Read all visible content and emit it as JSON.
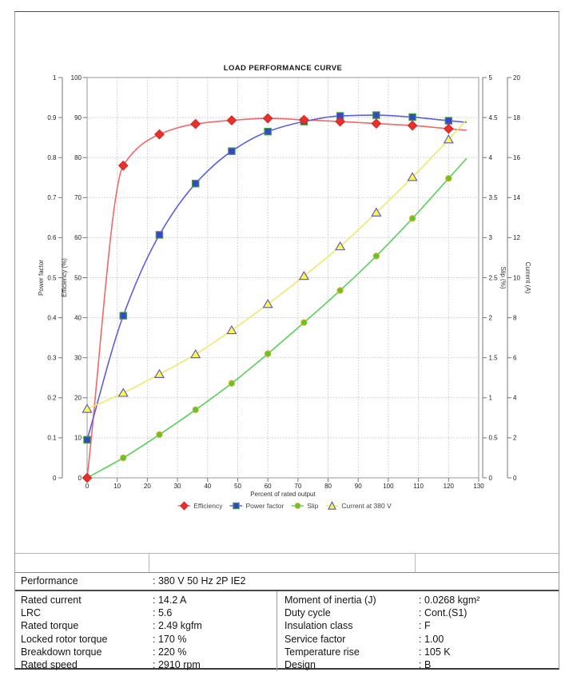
{
  "chart_data": {
    "type": "line",
    "title": "LOAD PERFORMANCE CURVE",
    "x_label": "Percent of rated output",
    "x_range": [
      0,
      130
    ],
    "x_tick_step": 10,
    "grid": "dotted",
    "legend_position": "bottom",
    "x_points": [
      0,
      12,
      24,
      36,
      48,
      60,
      72,
      84,
      96,
      108,
      120
    ],
    "line_end_x": 126,
    "axes": [
      {
        "id": "power_factor",
        "title": "Power factor",
        "side": "left",
        "min": 0,
        "max": 1,
        "tick_step": 0.1
      },
      {
        "id": "efficiency",
        "title": "Efficiency (%)",
        "side": "left",
        "min": 0,
        "max": 100,
        "tick_step": 10
      },
      {
        "id": "slip",
        "title": "Slip (%)",
        "side": "right",
        "min": 0,
        "max": 5,
        "tick_step": 0.5
      },
      {
        "id": "current",
        "title": "Current (A)",
        "side": "right",
        "min": 0,
        "max": 20,
        "tick_step": 2
      }
    ],
    "series": [
      {
        "name": "Efficiency",
        "axis": "efficiency",
        "marker": "diamond",
        "line_color": "#f06868",
        "marker_fill": "#e8312d",
        "marker_stroke": "#d42522",
        "values": [
          0,
          78,
          85.8,
          88.4,
          89.3,
          89.8,
          89.4,
          89.0,
          88.5,
          88.0,
          87.2
        ],
        "end_value": 86.8
      },
      {
        "name": "Power factor",
        "axis": "power_factor",
        "marker": "square",
        "line_color": "#5c5fdd",
        "marker_fill": "#3a46c8",
        "marker_stroke": "#3fa63f",
        "values": [
          0.095,
          0.405,
          0.607,
          0.735,
          0.816,
          0.865,
          0.89,
          0.904,
          0.906,
          0.901,
          0.892
        ],
        "end_value": 0.888
      },
      {
        "name": "Slip",
        "axis": "slip",
        "marker": "circle",
        "line_color": "#5bcf5b",
        "marker_fill": "#59c832",
        "marker_stroke": "#dfa81f",
        "values": [
          0,
          0.25,
          0.54,
          0.85,
          1.18,
          1.55,
          1.94,
          2.34,
          2.77,
          3.24,
          3.74
        ],
        "end_value": 3.99
      },
      {
        "name": "Current at 380 V",
        "axis": "current",
        "marker": "triangle",
        "line_color": "#efe96a",
        "marker_fill": "#fbf84e",
        "marker_stroke": "#5b54c2",
        "values": [
          3.44,
          4.24,
          5.18,
          6.17,
          7.37,
          8.68,
          10.08,
          11.56,
          13.25,
          15.02,
          16.9
        ],
        "end_value": 17.9
      }
    ]
  },
  "specs": {
    "performance": {
      "label": "Performance",
      "value": ": 380 V 50 Hz 2P IE2"
    },
    "rows": [
      {
        "l1": "Rated current",
        "v1": ": 14.2 A",
        "l2": "Moment of inertia (J)",
        "v2": ": 0.0268 kgm²"
      },
      {
        "l1": "LRC",
        "v1": ": 5.6",
        "l2": "Duty cycle",
        "v2": ": Cont.(S1)"
      },
      {
        "l1": "Rated torque",
        "v1": ": 2.49 kgfm",
        "l2": "Insulation class",
        "v2": ": F"
      },
      {
        "l1": "Locked rotor torque",
        "v1": ": 170 %",
        "l2": "Service factor",
        "v2": ": 1.00"
      },
      {
        "l1": "Breakdown torque",
        "v1": ": 220 %",
        "l2": "Temperature rise",
        "v2": ": 105 K"
      },
      {
        "l1": "Rated speed",
        "v1": ": 2910 rpm",
        "l2": "Design",
        "v2": ": B"
      }
    ]
  }
}
